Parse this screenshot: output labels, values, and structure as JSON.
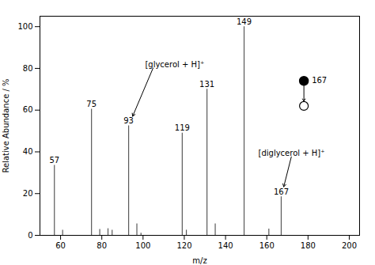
{
  "chart_data": {
    "type": "stem",
    "xlabel": "m/z",
    "ylabel": "Relative Abundance / %",
    "x": [
      57,
      61,
      75,
      79,
      83,
      85,
      93,
      97,
      99,
      119,
      121,
      131,
      135,
      149,
      161,
      167
    ],
    "values": [
      33.5,
      2.5,
      60.5,
      2.8,
      3.2,
      2.5,
      52.5,
      5.5,
      1.0,
      49.0,
      2.5,
      70.0,
      5.5,
      100.0,
      3.0,
      18.5
    ],
    "labels": [
      "57",
      null,
      "75",
      null,
      null,
      null,
      "93",
      null,
      null,
      "119",
      null,
      "131",
      null,
      "149",
      null,
      "167"
    ],
    "color": "#595959",
    "xlim": [
      50,
      205
    ],
    "ylim": [
      0,
      105
    ],
    "xticks": [
      60,
      80,
      100,
      120,
      140,
      160,
      180,
      200
    ],
    "yticks": [
      0,
      20,
      40,
      60,
      80,
      100
    ],
    "annotations": [
      {
        "text": "[glycerol + H]⁺",
        "x": 93,
        "y": 52.5
      },
      {
        "text": "[diglycerol + H]⁺",
        "x": 167,
        "y": 18.5
      },
      {
        "text": "167"
      }
    ]
  }
}
